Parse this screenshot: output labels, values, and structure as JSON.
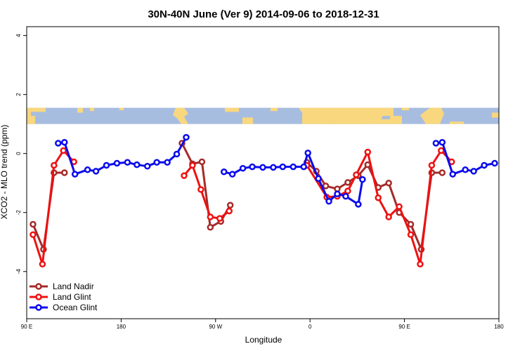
{
  "chart_data": {
    "type": "line",
    "title": "30N-40N June (Ver 9)   2014-09-06 to 2018-12-31",
    "xlabel": "Longitude",
    "ylabel": "XCO2 - MLO trend (ppm)",
    "xlim": [
      0,
      450
    ],
    "ylim": [
      -5.6,
      4.3
    ],
    "x_ticks": [
      {
        "value": 0,
        "label": "90 E"
      },
      {
        "value": 90,
        "label": "180"
      },
      {
        "value": 180,
        "label": "90 W"
      },
      {
        "value": 270,
        "label": "0"
      },
      {
        "value": 360,
        "label": "90 E"
      },
      {
        "value": 450,
        "label": "180"
      }
    ],
    "y_ticks": [
      {
        "value": 4,
        "label": "4"
      },
      {
        "value": 2,
        "label": "2"
      },
      {
        "value": 0,
        "label": "0"
      },
      {
        "value": -2,
        "label": "-2"
      },
      {
        "value": -4,
        "label": "-4"
      }
    ],
    "legend_position": "bottom-left",
    "map_strip": {
      "y_range": [
        1.0,
        1.55
      ],
      "ocean_color": "#a7bde0",
      "land_color": "#f9d77e"
    },
    "series": [
      {
        "name": "Land Nadir",
        "color": "#a52a2a",
        "segments": [
          [
            [
              6,
              -2.4
            ],
            [
              16,
              -3.25
            ],
            [
              26,
              -0.65
            ],
            [
              36,
              -0.65
            ]
          ],
          [
            [
              148,
              0.35
            ],
            [
              158,
              -0.35
            ],
            [
              167,
              -0.28
            ],
            [
              175,
              -2.5
            ],
            [
              185,
              -2.3
            ],
            [
              194,
              -1.75
            ]
          ],
          [
            [
              267,
              -0.3
            ],
            [
              276,
              -0.6
            ],
            [
              285,
              -1.1
            ],
            [
              296,
              -1.2
            ],
            [
              306,
              -0.98
            ],
            [
              316,
              -0.75
            ],
            [
              325,
              -0.38
            ],
            [
              335,
              -1.15
            ],
            [
              345,
              -1.0
            ],
            [
              355,
              -2.0
            ],
            [
              366,
              -2.4
            ],
            [
              376,
              -3.25
            ],
            [
              386,
              -0.65
            ],
            [
              396,
              -0.65
            ]
          ]
        ]
      },
      {
        "name": "Land Glint",
        "color": "#ee1111",
        "segments": [
          [
            [
              6,
              -2.75
            ],
            [
              15,
              -3.75
            ],
            [
              26,
              -0.4
            ],
            [
              35,
              0.1
            ],
            [
              45,
              -0.28
            ]
          ],
          [
            [
              150,
              -0.75
            ],
            [
              158,
              -0.4
            ],
            [
              166,
              -1.22
            ],
            [
              175,
              -2.15
            ],
            [
              184,
              -2.2
            ],
            [
              193,
              -1.95
            ]
          ],
          [
            [
              267,
              -0.4
            ],
            [
              286,
              -1.48
            ],
            [
              296,
              -1.45
            ],
            [
              306,
              -1.27
            ],
            [
              314,
              -0.72
            ],
            [
              325,
              0.05
            ],
            [
              335,
              -1.5
            ],
            [
              345,
              -2.15
            ],
            [
              355,
              -1.8
            ],
            [
              366,
              -2.75
            ],
            [
              375,
              -3.75
            ],
            [
              386,
              -0.4
            ],
            [
              395,
              0.1
            ],
            [
              405,
              -0.28
            ]
          ]
        ]
      },
      {
        "name": "Ocean Glint",
        "color": "#0a0aee",
        "segments": [
          [
            [
              30,
              0.35
            ],
            [
              36,
              0.38
            ],
            [
              46,
              -0.7
            ],
            [
              58,
              -0.55
            ],
            [
              66,
              -0.6
            ],
            [
              76,
              -0.4
            ],
            [
              86,
              -0.33
            ],
            [
              96,
              -0.3
            ],
            [
              105,
              -0.38
            ],
            [
              115,
              -0.43
            ],
            [
              124,
              -0.3
            ],
            [
              134,
              -0.3
            ],
            [
              143,
              -0.02
            ],
            [
              152,
              0.55
            ]
          ],
          [
            [
              188,
              -0.62
            ],
            [
              196,
              -0.7
            ],
            [
              206,
              -0.5
            ],
            [
              215,
              -0.45
            ],
            [
              225,
              -0.47
            ],
            [
              235,
              -0.47
            ],
            [
              244,
              -0.45
            ],
            [
              254,
              -0.45
            ],
            [
              264,
              -0.45
            ],
            [
              268,
              0.02
            ],
            [
              278,
              -0.85
            ],
            [
              288,
              -1.62
            ],
            [
              296,
              -1.37
            ],
            [
              304,
              -1.45
            ],
            [
              316,
              -1.72
            ],
            [
              320,
              -0.88
            ]
          ],
          [
            [
              390,
              0.35
            ],
            [
              396,
              0.38
            ],
            [
              406,
              -0.7
            ],
            [
              418,
              -0.55
            ],
            [
              426,
              -0.6
            ],
            [
              436,
              -0.4
            ],
            [
              446,
              -0.33
            ]
          ]
        ]
      }
    ]
  }
}
